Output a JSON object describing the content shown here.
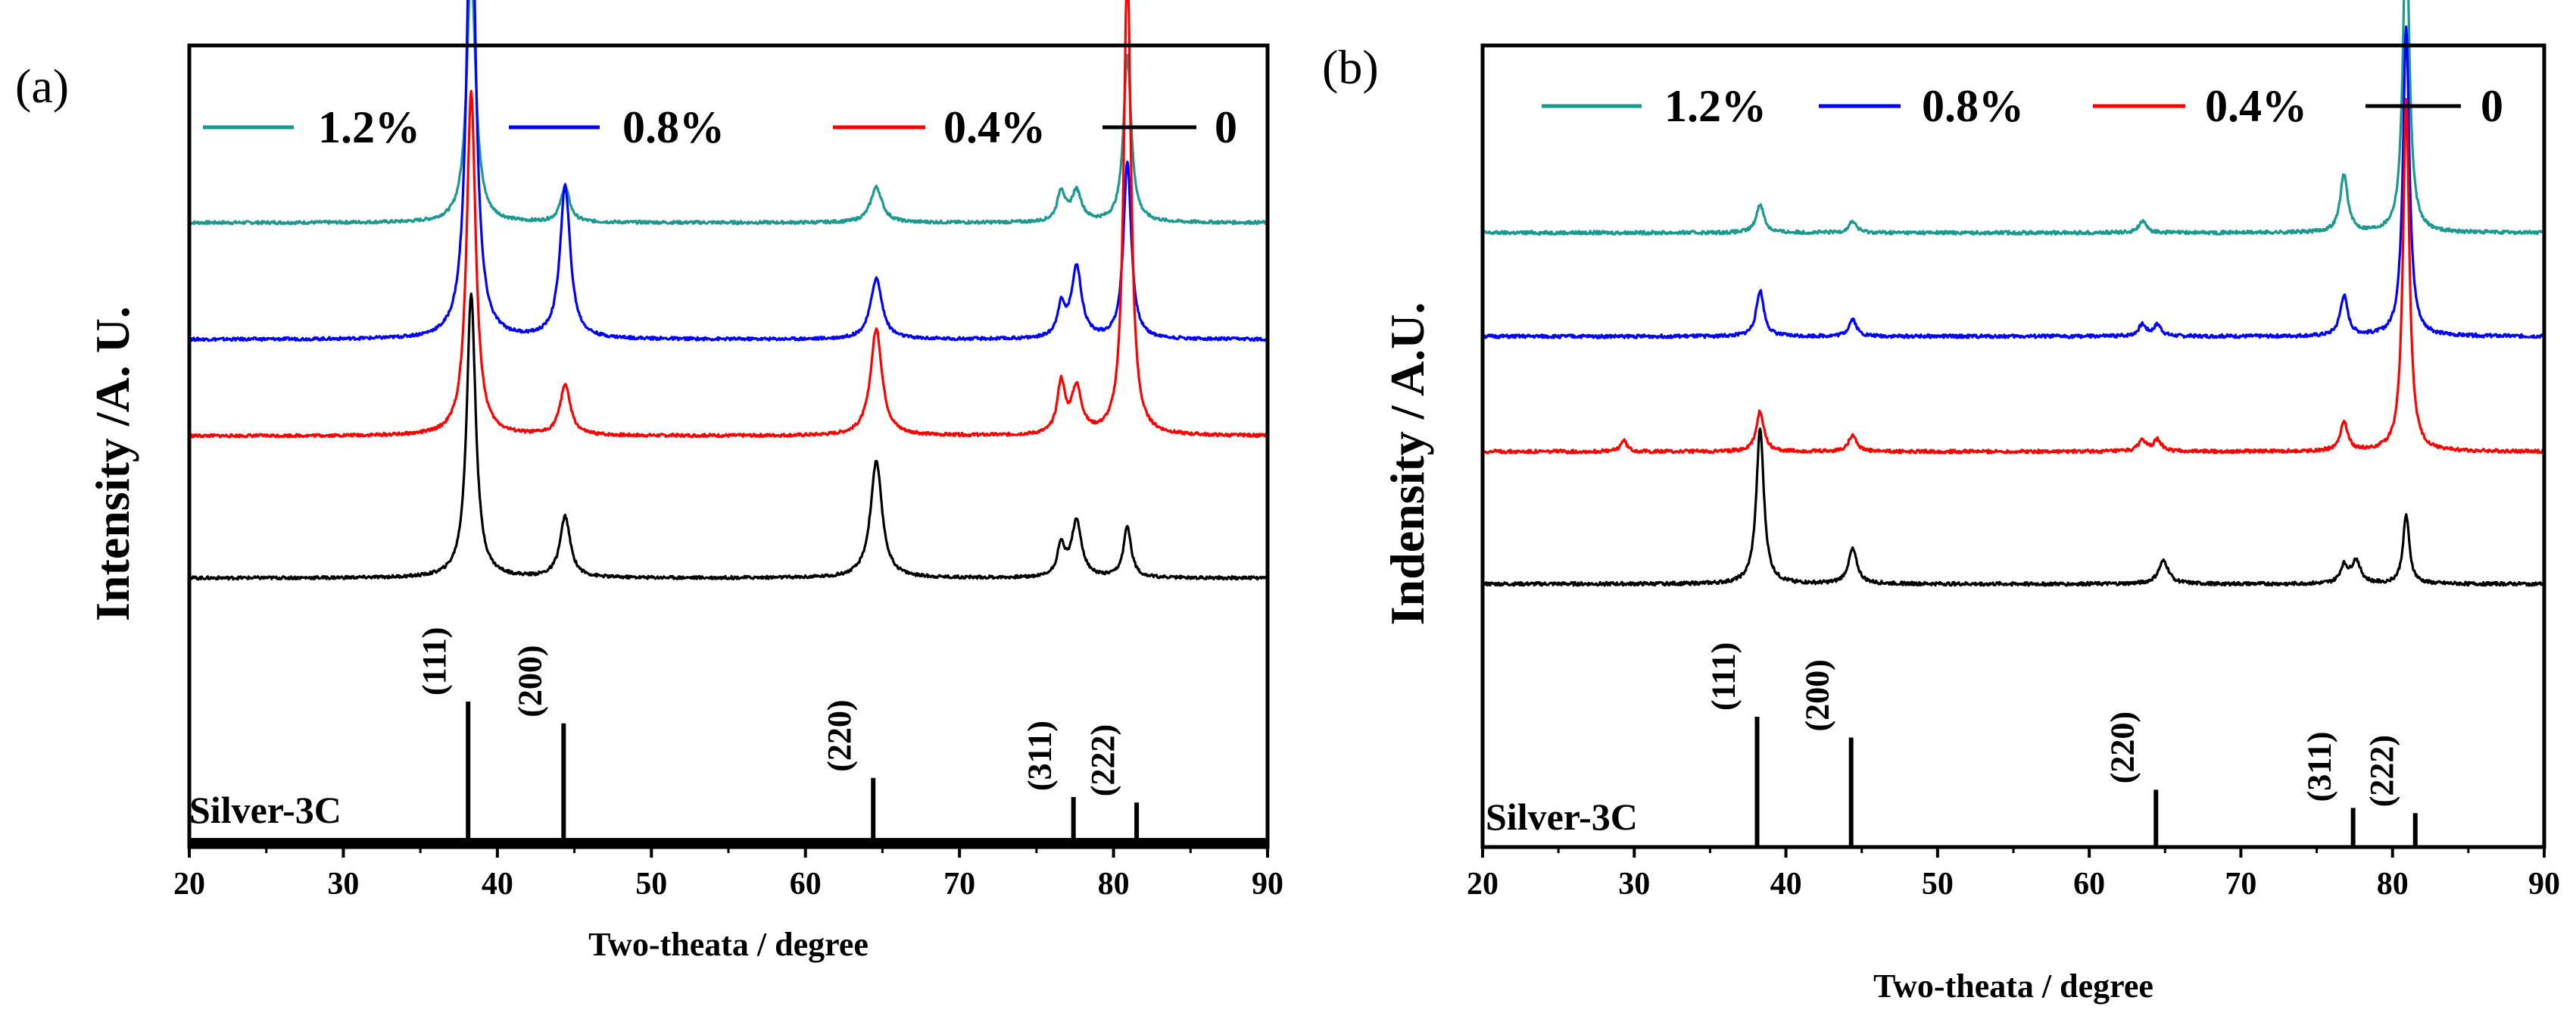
{
  "chart_data": [
    {
      "type": "line",
      "panel_label": "(a)",
      "xlabel": "Two-theata / degree",
      "ylabel": "Intensity /A. U.",
      "xlim": [
        20,
        90
      ],
      "xticks": [
        20,
        30,
        40,
        50,
        60,
        70,
        80,
        90
      ],
      "reference": {
        "name": "Silver-3C",
        "lines": [
          {
            "hkl": "(111)",
            "x": 38.1,
            "height": 1.0
          },
          {
            "hkl": "(200)",
            "x": 44.3,
            "height": 0.84
          },
          {
            "hkl": "(220)",
            "x": 64.4,
            "height": 0.44
          },
          {
            "hkl": "(311)",
            "x": 77.4,
            "height": 0.3
          },
          {
            "hkl": "(222)",
            "x": 81.5,
            "height": 0.26
          }
        ]
      },
      "series": [
        {
          "name": "1.2%",
          "color": "#1a9990",
          "baseline": 0.8,
          "peaks": [
            [
              38.3,
              0.5,
              0.35
            ],
            [
              44.4,
              0.07,
              0.35
            ],
            [
              64.6,
              0.07,
              0.45
            ],
            [
              76.6,
              0.06,
              0.3
            ],
            [
              77.6,
              0.06,
              0.4
            ],
            [
              80.9,
              0.33,
              0.3
            ]
          ]
        },
        {
          "name": "0.8%",
          "color": "#0000ff",
          "baseline": 0.57,
          "peaks": [
            [
              38.3,
              0.95,
              0.35
            ],
            [
              44.4,
              0.3,
              0.4
            ],
            [
              64.6,
              0.12,
              0.45
            ],
            [
              76.6,
              0.06,
              0.3
            ],
            [
              77.6,
              0.14,
              0.4
            ],
            [
              80.9,
              0.35,
              0.3
            ]
          ]
        },
        {
          "name": "0.4%",
          "color": "#ff0000",
          "baseline": 0.38,
          "peaks": [
            [
              38.3,
              0.68,
              0.35
            ],
            [
              44.4,
              0.1,
              0.4
            ],
            [
              64.6,
              0.21,
              0.45
            ],
            [
              76.6,
              0.1,
              0.3
            ],
            [
              77.6,
              0.09,
              0.4
            ],
            [
              80.9,
              0.93,
              0.28
            ]
          ]
        },
        {
          "name": "0",
          "color": "#000000",
          "baseline": 0.1,
          "peaks": [
            [
              38.3,
              0.56,
              0.35
            ],
            [
              44.4,
              0.12,
              0.4
            ],
            [
              64.6,
              0.23,
              0.45
            ],
            [
              76.6,
              0.06,
              0.3
            ],
            [
              77.6,
              0.11,
              0.4
            ],
            [
              80.9,
              0.1,
              0.3
            ]
          ]
        }
      ]
    },
    {
      "type": "line",
      "panel_label": "(b)",
      "xlabel": "Two-theata / degree",
      "ylabel": "Indensity / A.U.",
      "xlim": [
        20,
        90
      ],
      "xticks": [
        20,
        30,
        40,
        50,
        60,
        70,
        80,
        90
      ],
      "reference": {
        "name": "Silver-3C",
        "lines": [
          {
            "hkl": "(111)",
            "x": 38.1,
            "height": 1.0
          },
          {
            "hkl": "(200)",
            "x": 44.3,
            "height": 0.84
          },
          {
            "hkl": "(220)",
            "x": 64.4,
            "height": 0.44
          },
          {
            "hkl": "(311)",
            "x": 77.4,
            "height": 0.3
          },
          {
            "hkl": "(222)",
            "x": 81.5,
            "height": 0.26
          }
        ]
      },
      "series": [
        {
          "name": "1.2%",
          "color": "#1a9990",
          "baseline": 0.78,
          "peaks": [
            [
              38.3,
              0.05,
              0.3
            ],
            [
              44.4,
              0.02,
              0.3
            ],
            [
              63.5,
              0.02,
              0.3
            ],
            [
              76.8,
              0.1,
              0.3
            ],
            [
              80.9,
              0.55,
              0.25
            ]
          ]
        },
        {
          "name": "0.8%",
          "color": "#0000ff",
          "baseline": 0.6,
          "peaks": [
            [
              38.3,
              0.08,
              0.3
            ],
            [
              44.4,
              0.03,
              0.3
            ],
            [
              63.5,
              0.02,
              0.3
            ],
            [
              64.5,
              0.02,
              0.3
            ],
            [
              76.8,
              0.07,
              0.3
            ],
            [
              80.9,
              0.54,
              0.25
            ]
          ]
        },
        {
          "name": "0.4%",
          "color": "#ff0000",
          "baseline": 0.4,
          "peaks": [
            [
              29.3,
              0.02,
              0.25
            ],
            [
              38.3,
              0.07,
              0.3
            ],
            [
              44.4,
              0.03,
              0.3
            ],
            [
              63.5,
              0.02,
              0.3
            ],
            [
              64.5,
              0.02,
              0.3
            ],
            [
              76.8,
              0.05,
              0.3
            ],
            [
              80.9,
              0.61,
              0.25
            ]
          ]
        },
        {
          "name": "0",
          "color": "#000000",
          "baseline": 0.17,
          "peaks": [
            [
              38.3,
              0.27,
              0.3
            ],
            [
              44.4,
              0.06,
              0.35
            ],
            [
              64.9,
              0.04,
              0.4
            ],
            [
              76.8,
              0.03,
              0.3
            ],
            [
              77.6,
              0.04,
              0.35
            ],
            [
              80.9,
              0.12,
              0.25
            ]
          ]
        }
      ]
    }
  ]
}
